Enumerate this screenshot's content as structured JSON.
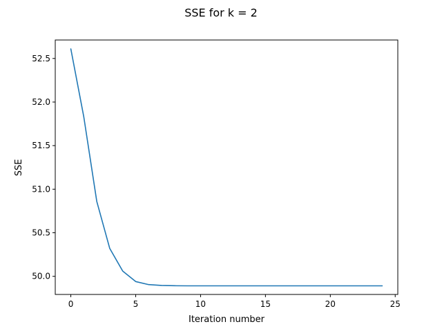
{
  "chart_data": {
    "type": "line",
    "title": "SSE for k = 2",
    "xlabel": "Iteration number",
    "ylabel": "SSE",
    "xlim": [
      -1.2,
      25.2
    ],
    "ylim": [
      49.792,
      52.712
    ],
    "xticks": [
      0,
      5,
      10,
      15,
      20,
      25
    ],
    "xtick_labels": [
      "0",
      "5",
      "10",
      "15",
      "20",
      "25"
    ],
    "yticks": [
      50.0,
      50.5,
      51.0,
      51.5,
      52.0,
      52.5
    ],
    "ytick_labels": [
      "50.0",
      "50.5",
      "51.0",
      "51.5",
      "52.0",
      "52.5"
    ],
    "grid": false,
    "series": [
      {
        "color": "#1f77b4",
        "x": [
          0,
          1,
          2,
          3,
          4,
          5,
          6,
          7,
          8,
          9,
          10,
          11,
          12,
          13,
          14,
          15,
          16,
          17,
          18,
          19,
          20,
          21,
          22,
          23,
          24
        ],
        "y": [
          52.61,
          51.83,
          50.86,
          50.32,
          50.06,
          49.94,
          49.905,
          49.895,
          49.892,
          49.891,
          49.891,
          49.891,
          49.891,
          49.891,
          49.891,
          49.891,
          49.891,
          49.891,
          49.891,
          49.891,
          49.891,
          49.891,
          49.891,
          49.891,
          49.891
        ]
      }
    ]
  }
}
